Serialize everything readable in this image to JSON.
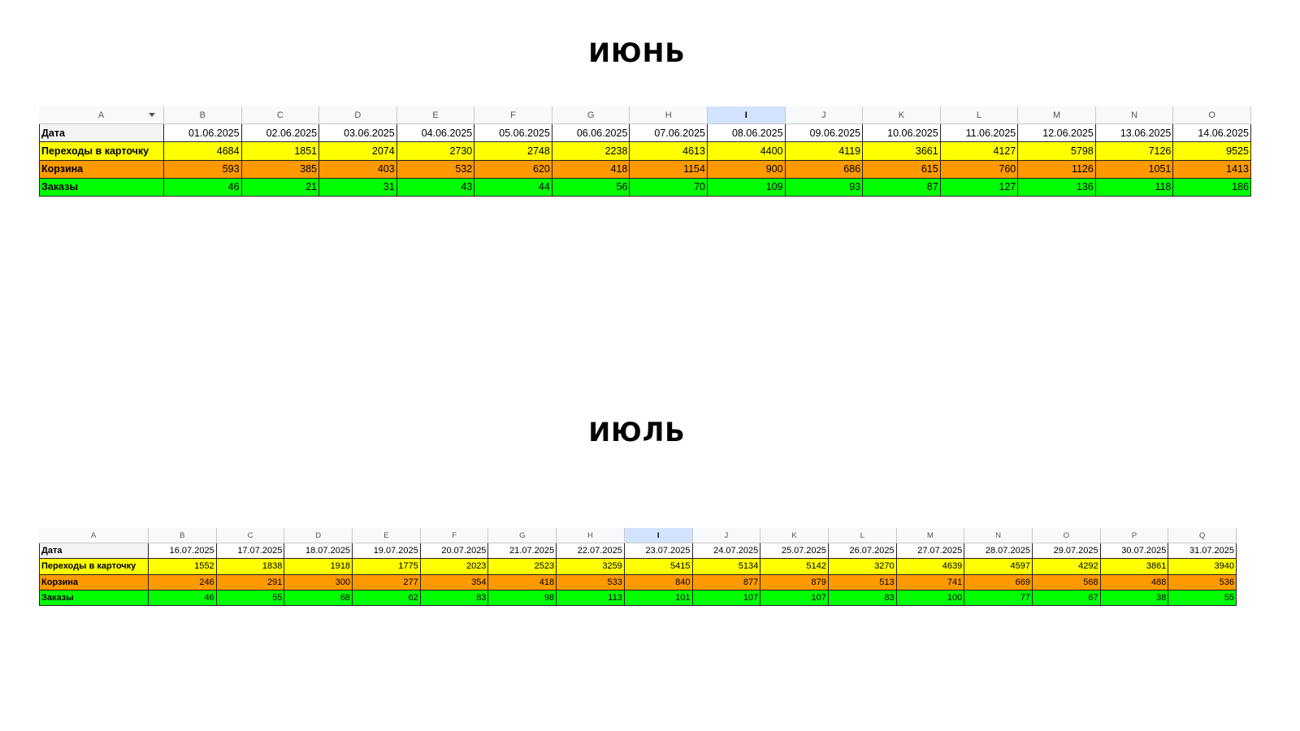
{
  "sections": [
    {
      "title": "ИЮНЬ",
      "columns": [
        "A",
        "B",
        "C",
        "D",
        "E",
        "F",
        "G",
        "H",
        "I",
        "J",
        "K",
        "L",
        "M",
        "N",
        "O"
      ],
      "rows": [
        {
          "label": "Дата",
          "cells": [
            "01.06.2025",
            "02.06.2025",
            "03.06.2025",
            "04.06.2025",
            "05.06.2025",
            "06.06.2025",
            "07.06.2025",
            "08.06.2025",
            "09.06.2025",
            "10.06.2025",
            "11.06.2025",
            "12.06.2025",
            "13.06.2025",
            "14.06.2025"
          ]
        },
        {
          "label": "Переходы в карточку",
          "cells": [
            4684,
            1851,
            2074,
            2730,
            2748,
            2238,
            4613,
            4400,
            4119,
            3661,
            4127,
            5798,
            7126,
            9525
          ]
        },
        {
          "label": "Корзина",
          "cells": [
            593,
            385,
            403,
            532,
            620,
            418,
            1154,
            900,
            686,
            615,
            760,
            1126,
            1051,
            1413
          ]
        },
        {
          "label": "Заказы",
          "cells": [
            46,
            21,
            31,
            43,
            44,
            56,
            70,
            109,
            93,
            87,
            127,
            136,
            118,
            186
          ]
        }
      ]
    },
    {
      "title": "ИЮЛЬ",
      "columns": [
        "A",
        "B",
        "C",
        "D",
        "E",
        "F",
        "G",
        "H",
        "I",
        "J",
        "K",
        "L",
        "M",
        "N",
        "O",
        "P",
        "Q"
      ],
      "rows": [
        {
          "label": "Дата",
          "cells": [
            "16.07.2025",
            "17.07.2025",
            "18.07.2025",
            "19.07.2025",
            "20.07.2025",
            "21.07.2025",
            "22.07.2025",
            "23.07.2025",
            "24.07.2025",
            "25.07.2025",
            "26.07.2025",
            "27.07.2025",
            "28.07.2025",
            "29.07.2025",
            "30.07.2025",
            "31.07.2025"
          ]
        },
        {
          "label": "Переходы в карточку",
          "cells": [
            1552,
            1838,
            1918,
            1775,
            2023,
            2523,
            3259,
            5415,
            5134,
            5142,
            3270,
            4639,
            4597,
            4292,
            3861,
            3940
          ]
        },
        {
          "label": "Корзина",
          "cells": [
            246,
            291,
            300,
            277,
            354,
            418,
            533,
            840,
            877,
            879,
            513,
            741,
            669,
            568,
            488,
            536
          ]
        },
        {
          "label": "Заказы",
          "cells": [
            46,
            55,
            68,
            62,
            83,
            98,
            113,
            101,
            107,
            107,
            83,
            100,
            77,
            67,
            38,
            55
          ]
        }
      ]
    }
  ]
}
